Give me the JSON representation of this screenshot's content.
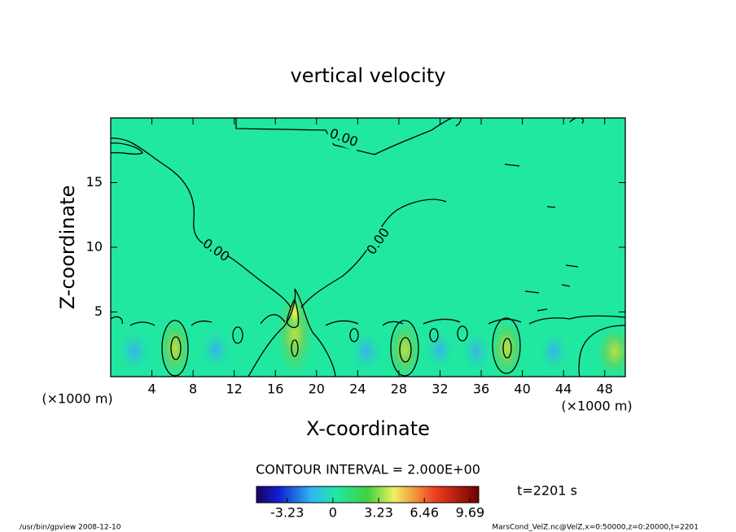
{
  "chart_data": {
    "type": "contour",
    "title": "vertical velocity",
    "xlabel": "X-coordinate",
    "ylabel": "Z-coordinate",
    "x_unit": "(×1000 m)",
    "xlim": [
      0,
      50
    ],
    "xticks": [
      4,
      8,
      12,
      16,
      20,
      24,
      28,
      32,
      36,
      40,
      44,
      48
    ],
    "ylim": [
      0,
      20
    ],
    "yticks": [
      5,
      10,
      15
    ],
    "contour_labels": [
      "0.00",
      "0.00",
      "0.00"
    ],
    "contour_interval": "CONTOUR INTERVAL = 2.000E+00",
    "time_label": "t=2201 s",
    "colorbar_lim": [
      -5.4,
      10.3
    ],
    "colorbar_ticks": [
      -3.23,
      0,
      3.23,
      6.46,
      9.69
    ],
    "footer_left": "/usr/bin/gpview  2008-12-10",
    "footer_right": "MarsCond_VelZ.nc@VelZ,x=0:50000,z=0:20000,t=2201"
  }
}
